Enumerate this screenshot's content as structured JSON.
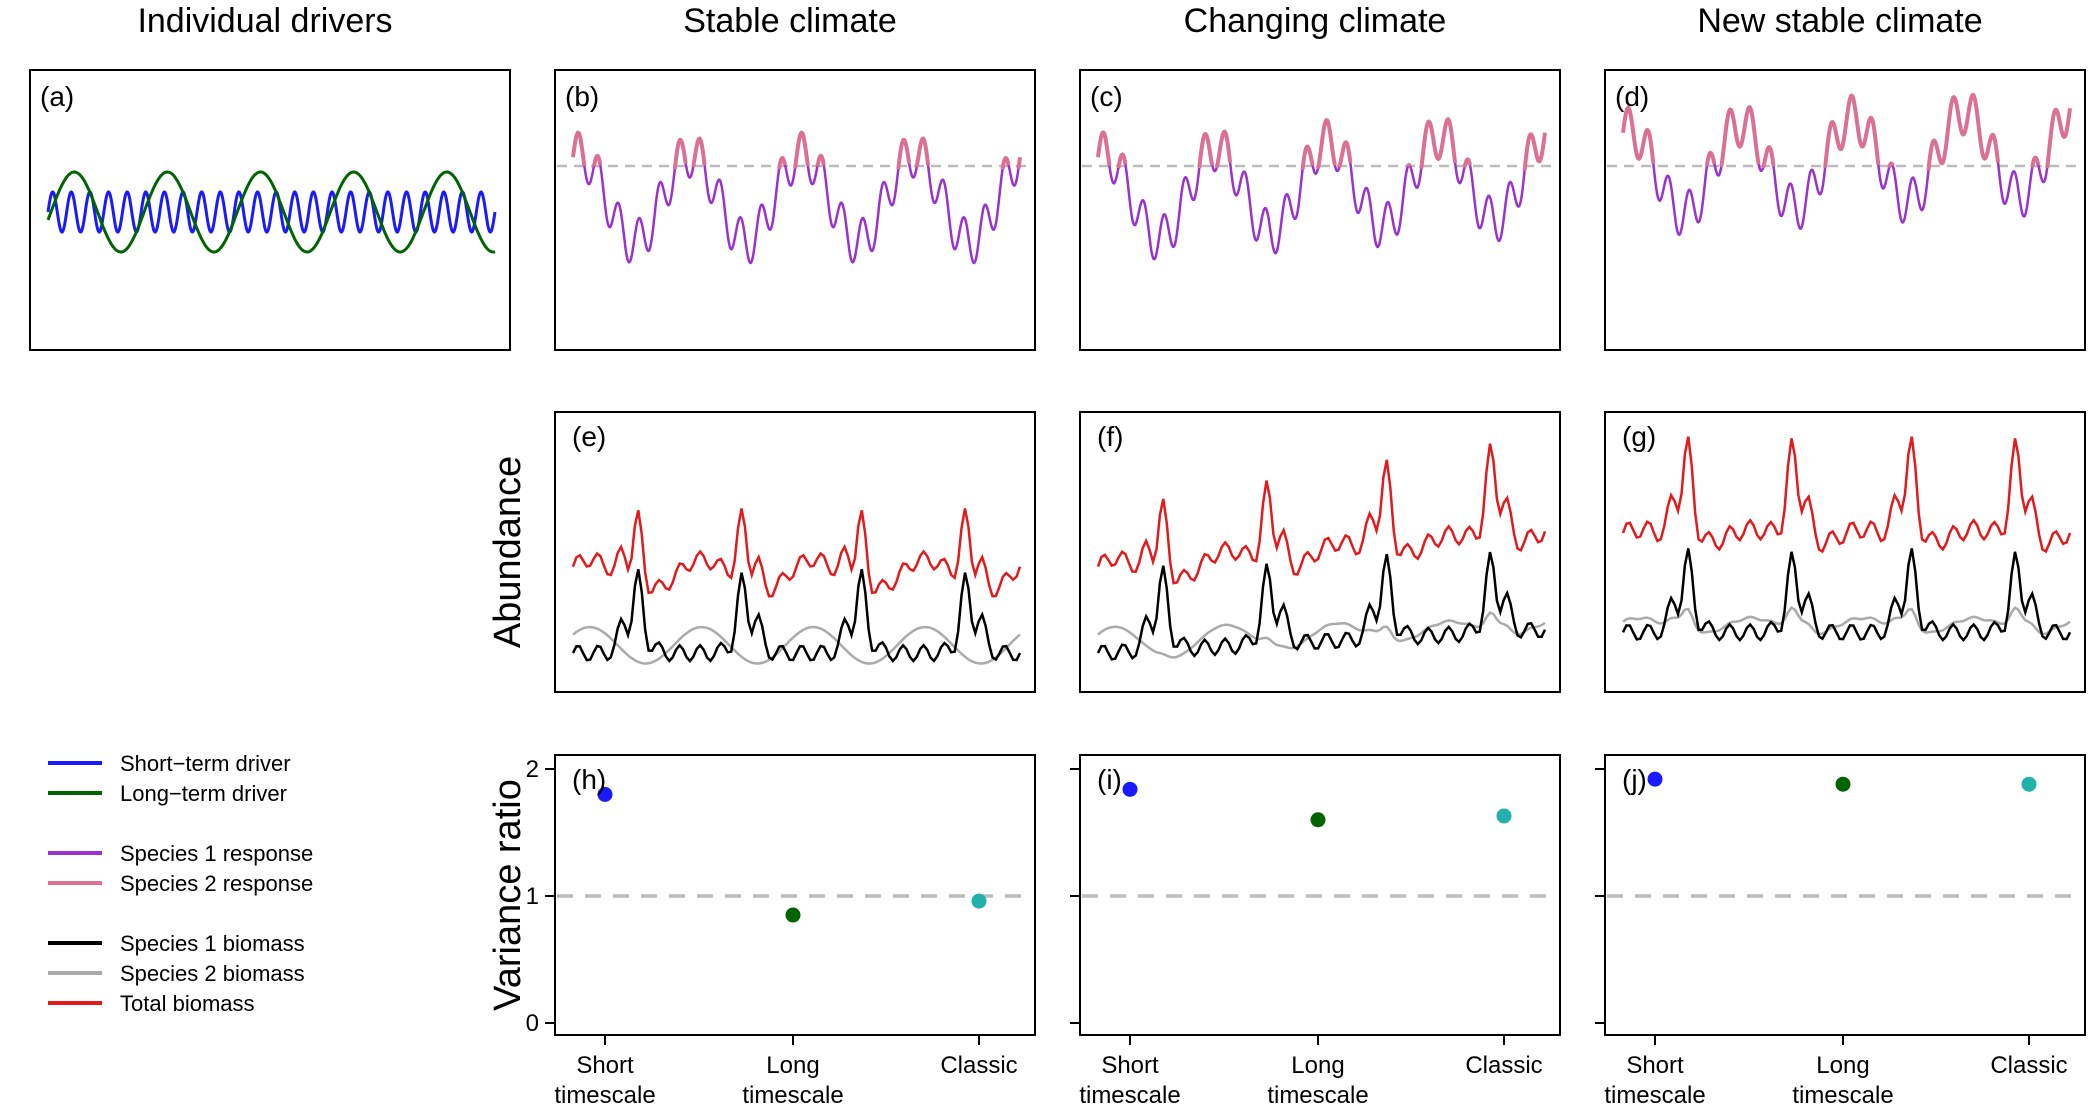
{
  "column_titles": [
    "Individual drivers",
    "Stable climate",
    "Changing climate",
    "New stable climate"
  ],
  "panel_labels": [
    "(a)",
    "(b)",
    "(c)",
    "(d)",
    "(e)",
    "(f)",
    "(g)",
    "(h)",
    "(i)",
    "(j)"
  ],
  "legend": [
    {
      "label": "Short−term driver",
      "color": "#1a1aff"
    },
    {
      "label": "Long−term driver",
      "color": "#006400"
    },
    {
      "label": "Species 1 response",
      "color": "#9a32cd"
    },
    {
      "label": "Species 2 response",
      "color": "#db7093"
    },
    {
      "label": "Species 1 biomass",
      "color": "#000000"
    },
    {
      "label": "Species 2 biomass",
      "color": "#aaaaaa"
    },
    {
      "label": "Total biomass",
      "color": "#e31a1c"
    }
  ],
  "colors": {
    "short_driver": "#1a1aff",
    "long_driver": "#006400",
    "species1_response": "#9a32cd",
    "species2_response": "#db7093",
    "species1_biomass": "#000000",
    "species2_biomass": "#aaaaaa",
    "total_biomass": "#e31a1c",
    "short_point": "#1a1aff",
    "long_point": "#006400",
    "classic_point": "#20b2aa",
    "reference": "#bbbbbb"
  },
  "chart_data": [
    {
      "id": "a",
      "type": "line",
      "title": "(a)",
      "series": [
        {
          "name": "Short−term driver",
          "kind": "short_driver",
          "cycles": 24
        },
        {
          "name": "Long−term driver",
          "kind": "long_driver",
          "cycles": 4.8
        }
      ]
    },
    {
      "id": "b",
      "type": "line",
      "title": "(b)",
      "series": [
        {
          "name": "Species 1 response",
          "kind": "response_s1",
          "trend": 0
        },
        {
          "name": "Species 2 response",
          "kind": "response_s2",
          "trend": 0
        }
      ]
    },
    {
      "id": "c",
      "type": "line",
      "title": "(c)",
      "series": [
        {
          "name": "Species 1 response",
          "kind": "response_s1",
          "trend": 0.35
        },
        {
          "name": "Species 2 response",
          "kind": "response_s2",
          "trend": 0.35
        }
      ]
    },
    {
      "id": "d",
      "type": "line",
      "title": "(d)",
      "series": [
        {
          "name": "Species 1 response",
          "kind": "response_s1",
          "trend": 0.35,
          "offset": 0.35
        },
        {
          "name": "Species 2 response",
          "kind": "response_s2",
          "trend": 0.35,
          "offset": 0.35
        }
      ]
    },
    {
      "id": "e",
      "type": "line",
      "title": "(e)",
      "ylabel": "Abundance",
      "series": [
        {
          "name": "Total biomass",
          "kind": "total"
        },
        {
          "name": "Species 1 biomass",
          "kind": "s1"
        },
        {
          "name": "Species 2 biomass",
          "kind": "s2"
        }
      ],
      "trend": 0
    },
    {
      "id": "f",
      "type": "line",
      "title": "(f)",
      "series": [
        {
          "name": "Total biomass",
          "kind": "total"
        },
        {
          "name": "Species 1 biomass",
          "kind": "s1"
        },
        {
          "name": "Species 2 biomass",
          "kind": "s2"
        }
      ],
      "trend": 0.5
    },
    {
      "id": "g",
      "type": "line",
      "title": "(g)",
      "series": [
        {
          "name": "Total biomass",
          "kind": "total"
        },
        {
          "name": "Species 1 biomass",
          "kind": "s1"
        },
        {
          "name": "Species 2 biomass",
          "kind": "s2"
        }
      ],
      "trend": 0,
      "offset": 0.5
    },
    {
      "id": "h",
      "type": "scatter",
      "title": "(h)",
      "ylabel": "Variance ratio",
      "categories": [
        "Short\ntimescale",
        "Long\ntimescale",
        "Classic"
      ],
      "values": [
        1.8,
        0.85,
        0.96
      ],
      "ylim": [
        0,
        2
      ],
      "yticks": [
        0,
        1,
        2
      ],
      "reference_line": 1
    },
    {
      "id": "i",
      "type": "scatter",
      "title": "(i)",
      "categories": [
        "Short\ntimescale",
        "Long\ntimescale",
        "Classic"
      ],
      "values": [
        1.84,
        1.6,
        1.63
      ],
      "ylim": [
        0,
        2
      ],
      "yticks": [
        0,
        1,
        2
      ],
      "reference_line": 1
    },
    {
      "id": "j",
      "type": "scatter",
      "title": "(j)",
      "categories": [
        "Short\ntimescale",
        "Long\ntimescale",
        "Classic"
      ],
      "values": [
        1.92,
        1.88,
        1.88
      ],
      "ylim": [
        0,
        2
      ],
      "yticks": [
        0,
        1,
        2
      ],
      "reference_line": 1
    }
  ]
}
